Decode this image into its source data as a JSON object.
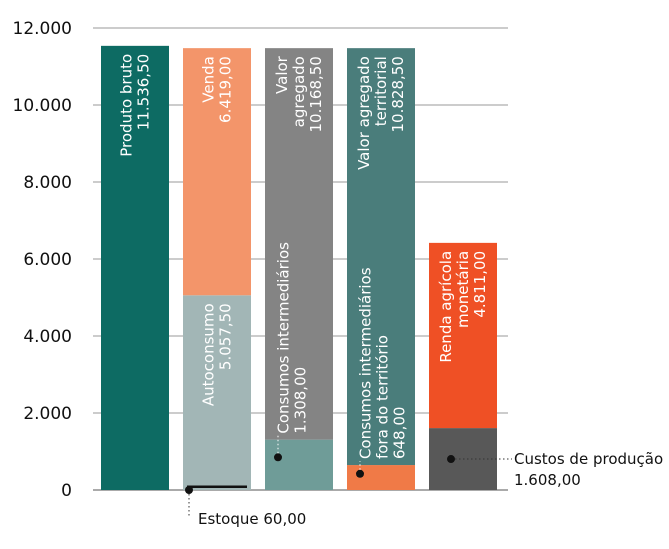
{
  "chart_data": {
    "type": "bar",
    "stacked": true,
    "ylim": [
      0,
      12000
    ],
    "yticks": [
      0,
      2000,
      4000,
      6000,
      8000,
      10000,
      12000
    ],
    "ytick_labels": [
      "0",
      "2.000",
      "4.000",
      "6.000",
      "8.000",
      "10.000",
      "12.000"
    ],
    "grid": true,
    "bars": [
      {
        "segments": [
          {
            "label": [
              "Produto bruto",
              "11.536,50"
            ],
            "value": 11536.5,
            "color": "#0d6b63"
          }
        ]
      },
      {
        "segments": [
          {
            "label": [
              "Autoconsumo",
              "5.057,50"
            ],
            "value": 5057.5,
            "color": "#a2b6b6"
          },
          {
            "label": [
              "Venda",
              "6.419,00"
            ],
            "value": 6419.0,
            "color": "#f3956a"
          }
        ],
        "marker": {
          "label": "Estoque 60,00",
          "value": 60.0,
          "color": "#111111"
        }
      },
      {
        "segments": [
          {
            "label": [
              "Consumos intermediários",
              "1.308,00"
            ],
            "value": 1308.0,
            "color": "#6f9c98",
            "label_outside": true
          },
          {
            "label": [
              "Valor",
              "agregado",
              "10.168,50"
            ],
            "value": 10168.5,
            "color": "#848484"
          }
        ]
      },
      {
        "segments": [
          {
            "label": [
              "Consumos intermediários",
              "fora do território",
              "648,00"
            ],
            "value": 648.0,
            "color": "#f07a47",
            "label_outside": true
          },
          {
            "label": [
              "Valor agregado",
              "territorial",
              "10.828,50"
            ],
            "value": 10828.5,
            "color": "#4a7d7b"
          }
        ]
      },
      {
        "segments": [
          {
            "label": [
              "Custos de produção",
              "1.608,00"
            ],
            "value": 1608.0,
            "color": "#585858",
            "label_outside": true,
            "label_side": "right"
          },
          {
            "label": [
              "Renda agrícola",
              "monetária",
              "4.811,00"
            ],
            "value": 4811.0,
            "color": "#ef5025"
          }
        ]
      }
    ]
  }
}
